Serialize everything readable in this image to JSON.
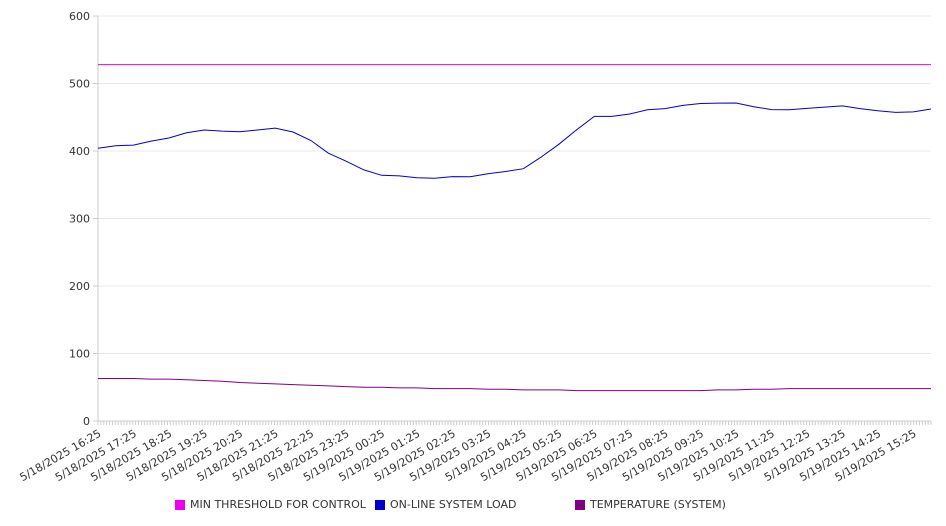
{
  "chart_data": {
    "type": "line",
    "title": "",
    "xlabel": "",
    "ylabel": "",
    "ylim": [
      0,
      600
    ],
    "y_ticks": [
      0,
      100,
      200,
      300,
      400,
      500,
      600
    ],
    "grid": true,
    "legend_position": "bottom",
    "x_tick_labels": [
      "5/18/2025 16:25",
      "5/18/2025 17:25",
      "5/18/2025 18:25",
      "5/18/2025 19:25",
      "5/18/2025 20:25",
      "5/18/2025 21:25",
      "5/18/2025 22:25",
      "5/18/2025 23:25",
      "5/19/2025 00:25",
      "5/19/2025 01:25",
      "5/19/2025 02:25",
      "5/19/2025 03:25",
      "5/19/2025 04:25",
      "5/19/2025 05:25",
      "5/19/2025 06:25",
      "5/19/2025 07:25",
      "5/19/2025 08:25",
      "5/19/2025 09:25",
      "5/19/2025 10:25",
      "5/19/2025 11:25",
      "5/19/2025 12:25",
      "5/19/2025 13:25",
      "5/19/2025 14:25",
      "5/19/2025 15:25"
    ],
    "x": [
      "5/18/2025 16:25",
      "5/18/2025 16:55",
      "5/18/2025 17:25",
      "5/18/2025 17:55",
      "5/18/2025 18:25",
      "5/18/2025 18:55",
      "5/18/2025 19:25",
      "5/18/2025 19:55",
      "5/18/2025 20:25",
      "5/18/2025 20:55",
      "5/18/2025 21:25",
      "5/18/2025 21:55",
      "5/18/2025 22:25",
      "5/18/2025 22:55",
      "5/18/2025 23:25",
      "5/18/2025 23:55",
      "5/19/2025 00:25",
      "5/19/2025 00:55",
      "5/19/2025 01:25",
      "5/19/2025 01:55",
      "5/19/2025 02:25",
      "5/19/2025 02:55",
      "5/19/2025 03:25",
      "5/19/2025 03:55",
      "5/19/2025 04:25",
      "5/19/2025 04:55",
      "5/19/2025 05:25",
      "5/19/2025 05:55",
      "5/19/2025 06:25",
      "5/19/2025 06:55",
      "5/19/2025 07:25",
      "5/19/2025 07:55",
      "5/19/2025 08:25",
      "5/19/2025 08:55",
      "5/19/2025 09:25",
      "5/19/2025 09:55",
      "5/19/2025 10:25",
      "5/19/2025 10:55",
      "5/19/2025 11:25",
      "5/19/2025 11:55",
      "5/19/2025 12:25",
      "5/19/2025 12:55",
      "5/19/2025 13:25",
      "5/19/2025 13:55",
      "5/19/2025 14:25",
      "5/19/2025 14:55",
      "5/19/2025 15:25",
      "5/19/2025 15:55"
    ],
    "series": [
      {
        "name": "MIN THRESHOLD FOR CONTROL",
        "color": "#ee00ee",
        "values": [
          528,
          528,
          528,
          528,
          528,
          528,
          528,
          528,
          528,
          528,
          528,
          528,
          528,
          528,
          528,
          528,
          528,
          528,
          528,
          528,
          528,
          528,
          528,
          528,
          528,
          528,
          528,
          528,
          528,
          528,
          528,
          528,
          528,
          528,
          528,
          528,
          528,
          528,
          528,
          528,
          528,
          528,
          528,
          528,
          528,
          528,
          528,
          528
        ]
      },
      {
        "name": "ON-LINE SYSTEM LOAD",
        "color": "#0000cc",
        "values": [
          404,
          407,
          410,
          414,
          419,
          428,
          430,
          430,
          429,
          430,
          435,
          428,
          415,
          398,
          384,
          372,
          365,
          362,
          361,
          360,
          361,
          363,
          366,
          369,
          375,
          390,
          410,
          432,
          450,
          452,
          455,
          460,
          464,
          467,
          470,
          472,
          470,
          466,
          462,
          460,
          464,
          465,
          466,
          464,
          459,
          457,
          459,
          461
        ]
      },
      {
        "name": "TEMPERATURE (SYSTEM)",
        "color": "#800080",
        "values": [
          63,
          63,
          63,
          62,
          62,
          61,
          60,
          59,
          57,
          56,
          55,
          54,
          53,
          52,
          51,
          50,
          50,
          49,
          49,
          48,
          48,
          48,
          47,
          47,
          46,
          46,
          46,
          45,
          45,
          45,
          45,
          45,
          45,
          45,
          45,
          46,
          46,
          47,
          47,
          48,
          48,
          48,
          48,
          48,
          48,
          48,
          48,
          48
        ]
      }
    ]
  }
}
